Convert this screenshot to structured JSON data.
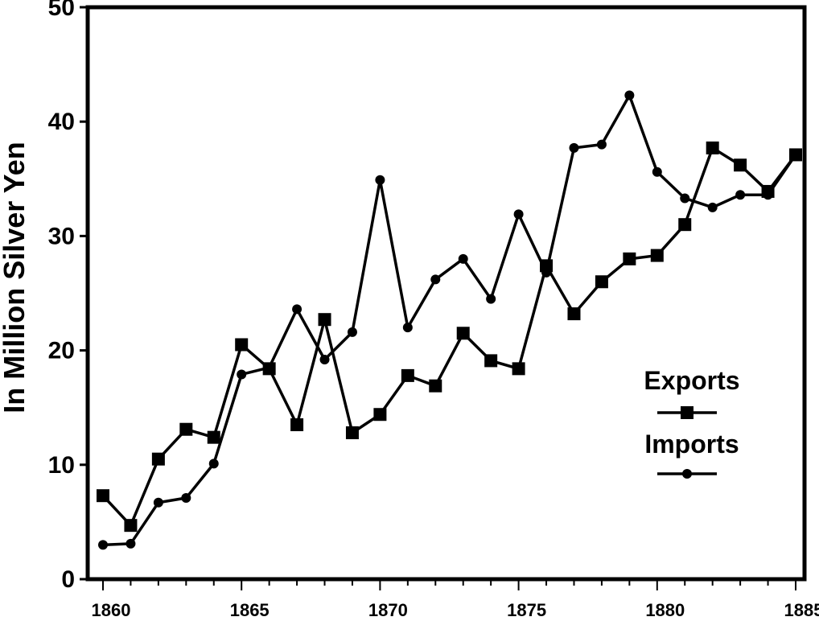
{
  "chart_data": {
    "type": "line",
    "title": "",
    "xlabel": "",
    "ylabel": "In Million Silver Yen",
    "xlim": [
      1860,
      1885
    ],
    "ylim": [
      0,
      50
    ],
    "x_ticks": [
      1860,
      1865,
      1870,
      1875,
      1880,
      1885
    ],
    "y_ticks": [
      0,
      10,
      20,
      30,
      40,
      50
    ],
    "grid": false,
    "legend_position": "center-right",
    "x": [
      1860,
      1861,
      1862,
      1863,
      1864,
      1865,
      1866,
      1867,
      1868,
      1869,
      1870,
      1871,
      1872,
      1873,
      1874,
      1875,
      1876,
      1877,
      1878,
      1879,
      1880,
      1881,
      1882,
      1883,
      1884,
      1885
    ],
    "series": [
      {
        "name": "Exports",
        "marker": "square",
        "color": "#000000",
        "values": [
          7.3,
          4.7,
          10.5,
          13.1,
          12.4,
          20.5,
          18.4,
          13.5,
          22.7,
          12.8,
          14.4,
          17.8,
          16.9,
          21.5,
          19.1,
          18.4,
          27.4,
          23.2,
          26.0,
          28.0,
          28.3,
          31.0,
          37.7,
          36.2,
          33.9,
          37.1
        ]
      },
      {
        "name": "Imports",
        "marker": "circle",
        "color": "#000000",
        "values": [
          3.0,
          3.1,
          6.7,
          7.1,
          10.1,
          17.9,
          18.5,
          23.6,
          19.2,
          21.6,
          34.9,
          22.0,
          26.2,
          28.0,
          24.5,
          31.9,
          26.8,
          37.7,
          38.0,
          42.3,
          35.6,
          33.3,
          32.5,
          33.6,
          33.6,
          37.1
        ]
      }
    ]
  }
}
